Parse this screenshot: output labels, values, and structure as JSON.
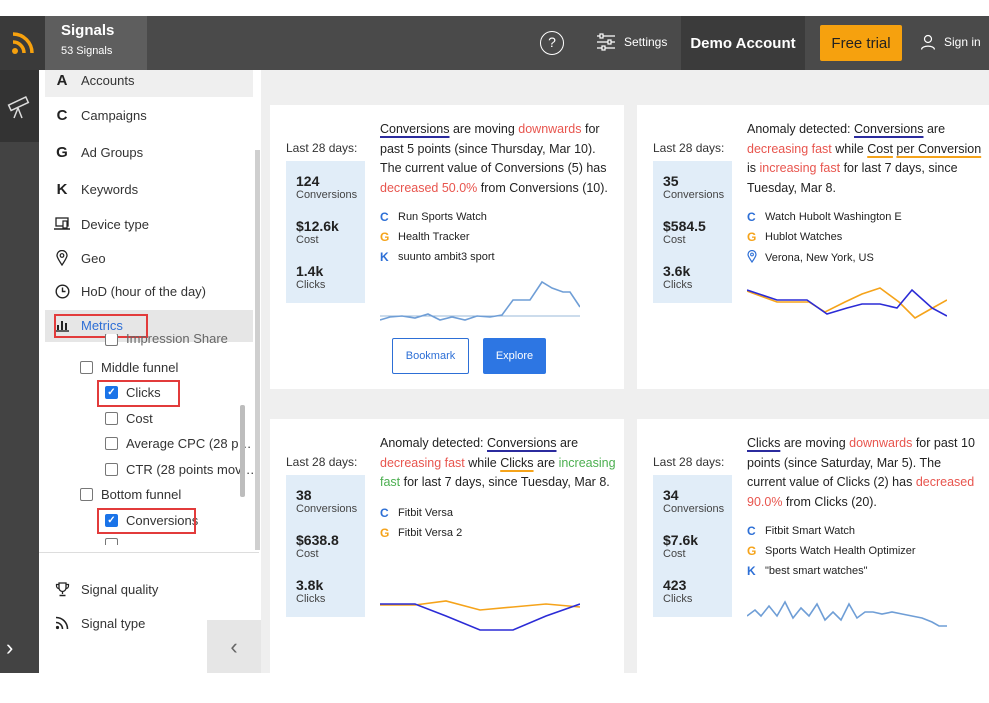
{
  "header": {
    "app_title": "Signals",
    "app_subtitle": "53 Signals",
    "help": "?",
    "settings_label": "Settings",
    "account_label": "Demo Account",
    "trial_label": "Free trial",
    "signin_label": "Sign in",
    "colors": {
      "bar": "#4a4a4a",
      "accent": "#f6a10e"
    }
  },
  "sidebar": {
    "dimensions": [
      {
        "label": "Accounts",
        "glyph": "A"
      },
      {
        "label": "Campaigns",
        "glyph": "C"
      },
      {
        "label": "Ad Groups",
        "glyph": "G"
      },
      {
        "label": "Keywords",
        "glyph": "K"
      },
      {
        "label": "Device type",
        "icon": "device-icon"
      },
      {
        "label": "Geo",
        "icon": "location-pin-icon"
      },
      {
        "label": "HoD (hour of the day)",
        "icon": "clock-icon"
      },
      {
        "label": "Metrics",
        "icon": "bar-chart-icon"
      }
    ],
    "partial_item": "Impression Share",
    "middle_funnel": {
      "label": "Middle funnel",
      "checked": false,
      "items": [
        {
          "label": "Clicks",
          "checked": true
        },
        {
          "label": "Cost",
          "checked": false
        },
        {
          "label": "Average CPC (28 p…",
          "checked": false
        },
        {
          "label": "CTR (28 points mov…",
          "checked": false
        }
      ]
    },
    "bottom_funnel": {
      "label": "Bottom funnel",
      "checked": false,
      "items": [
        {
          "label": "Conversions",
          "checked": true
        }
      ]
    },
    "footer_items": [
      {
        "label": "Signal quality",
        "icon": "trophy-icon"
      },
      {
        "label": "Signal type",
        "icon": "rss-icon"
      }
    ]
  },
  "cards": [
    {
      "period": "Last 28 days:",
      "stats": [
        {
          "value": "124",
          "label": "Conversions"
        },
        {
          "value": "$12.6k",
          "label": "Cost"
        },
        {
          "value": "1.4k",
          "label": "Clicks"
        }
      ],
      "text": {
        "metric": "Conversions",
        "p1": " are moving ",
        "dir": "downwards",
        "p2": " for past 5 points (since Thursday, Mar 10). The current value of Conversions (5) has ",
        "change": "decreased 50.0%",
        "p3": " from Conversions (10)."
      },
      "sources": [
        {
          "type": "C",
          "label": "Run Sports Watch"
        },
        {
          "type": "G",
          "label": "Health Tracker"
        },
        {
          "type": "K",
          "label": "suunto ambit3 sport"
        }
      ],
      "buttons": {
        "bookmark": "Bookmark",
        "explore": "Explore"
      }
    },
    {
      "period": "Last 28 days:",
      "stats": [
        {
          "value": "35",
          "label": "Conversions"
        },
        {
          "value": "$584.5",
          "label": "Cost"
        },
        {
          "value": "3.6k",
          "label": "Clicks"
        }
      ],
      "text": {
        "p0": "Anomaly detected: ",
        "metric_a": "Conversions",
        "p1": " are ",
        "trend_a": "decreasing fast",
        "p2": " while ",
        "metric_b1": "Cost",
        "metric_b2": "per Conversion",
        "p3": " is ",
        "trend_b": "increasing fast",
        "p4": " for last 7 days, since Tuesday, Mar 8."
      },
      "sources": [
        {
          "type": "C",
          "label": "Watch Hubolt Washington E"
        },
        {
          "type": "G",
          "label": "Hublot Watches"
        },
        {
          "type": "geo",
          "label": "Verona, New York, US"
        }
      ]
    },
    {
      "period": "Last 28 days:",
      "stats": [
        {
          "value": "38",
          "label": "Conversions"
        },
        {
          "value": "$638.8",
          "label": "Cost"
        },
        {
          "value": "3.8k",
          "label": "Clicks"
        }
      ],
      "text": {
        "p0": "Anomaly detected: ",
        "metric_a": "Conversions",
        "p1": " are ",
        "trend_a": "decreasing fast",
        "p2": " while ",
        "metric_b": "Clicks",
        "p3": " are ",
        "trend_b": "increasing fast",
        "p4": " for last 7 days, since Tuesday, Mar 8."
      },
      "sources": [
        {
          "type": "C",
          "label": "Fitbit Versa"
        },
        {
          "type": "G",
          "label": "Fitbit Versa 2"
        }
      ]
    },
    {
      "period": "Last 28 days:",
      "stats": [
        {
          "value": "34",
          "label": "Conversions"
        },
        {
          "value": "$7.6k",
          "label": "Cost"
        },
        {
          "value": "423",
          "label": "Clicks"
        }
      ],
      "text": {
        "metric": "Clicks",
        "p1": " are moving ",
        "dir": "downwards",
        "p2": " for past 10 points (since Saturday, Mar 5). The current value of Clicks (2) has ",
        "change": "decreased 90.0%",
        "p3": " from Clicks (20)."
      },
      "sources": [
        {
          "type": "C",
          "label": "Fitbit Smart Watch"
        },
        {
          "type": "G",
          "label": "Sports Watch Health Optimizer"
        },
        {
          "type": "K",
          "label": "\"best smart watches\""
        }
      ]
    }
  ]
}
